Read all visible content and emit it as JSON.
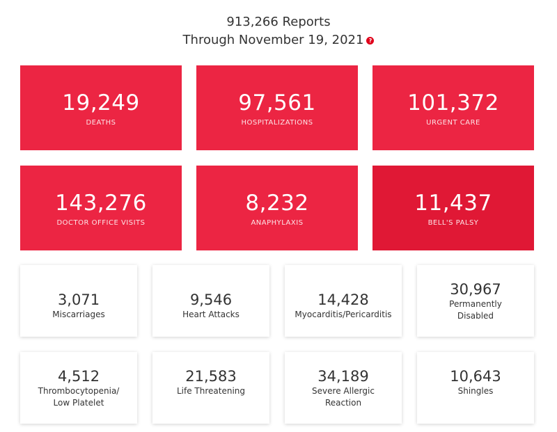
{
  "header": {
    "reports": "913,266 Reports",
    "through": "Through November 19, 2021",
    "help_icon": "?"
  },
  "red_cards": [
    {
      "value": "19,249",
      "label": "DEATHS"
    },
    {
      "value": "97,561",
      "label": "HOSPITALIZATIONS"
    },
    {
      "value": "101,372",
      "label": "URGENT CARE"
    },
    {
      "value": "143,276",
      "label": "DOCTOR OFFICE VISITS"
    },
    {
      "value": "8,232",
      "label": "ANAPHYLAXIS"
    },
    {
      "value": "11,437",
      "label": "BELL'S PALSY"
    }
  ],
  "white_cards": [
    {
      "value": "3,071",
      "label_lines": [
        "Miscarriages"
      ]
    },
    {
      "value": "9,546",
      "label_lines": [
        "Heart Attacks"
      ]
    },
    {
      "value": "14,428",
      "label_lines": [
        "Myocarditis/Pericarditis"
      ]
    },
    {
      "value": "30,967",
      "label_lines": [
        "Permanently",
        "Disabled"
      ]
    },
    {
      "value": "4,512",
      "label_lines": [
        "Thrombocytopenia/",
        "Low Platelet"
      ]
    },
    {
      "value": "21,583",
      "label_lines": [
        "Life Threatening"
      ]
    },
    {
      "value": "34,189",
      "label_lines": [
        "Severe Allergic",
        "Reaction"
      ]
    },
    {
      "value": "10,643",
      "label_lines": [
        "Shingles"
      ]
    }
  ],
  "colors": {
    "red_card": "#ec2543",
    "red_card_highlight": "#e01835",
    "help_icon": "#e0001b"
  }
}
